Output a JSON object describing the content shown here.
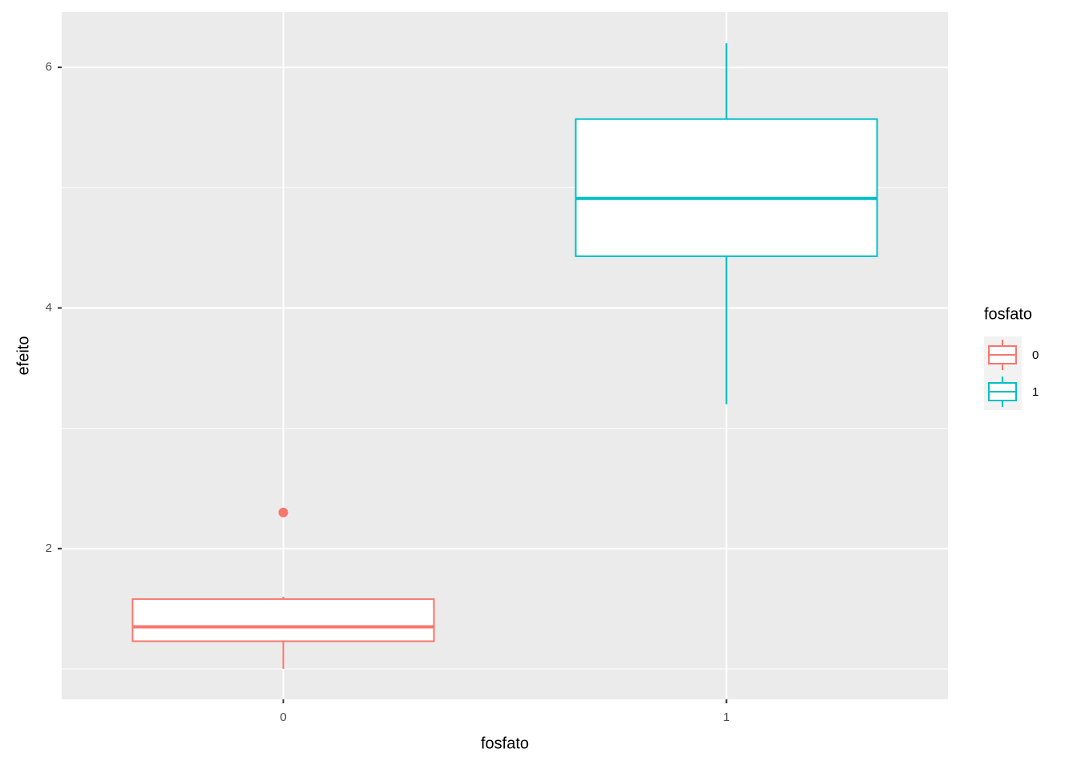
{
  "chart_data": {
    "type": "boxplot",
    "x_label": "fosfato",
    "y_label": "efeito",
    "categories": [
      "0",
      "1"
    ],
    "legend_title": "fosfato",
    "series": [
      {
        "name": "0",
        "color": "#F8766D",
        "whisker_low": 1.0,
        "q1": 1.23,
        "median": 1.35,
        "q3": 1.58,
        "whisker_high": 1.6,
        "outliers": [
          2.3
        ]
      },
      {
        "name": "1",
        "color": "#00BFC4",
        "whisker_low": 3.2,
        "q1": 4.43,
        "median": 4.91,
        "q3": 5.57,
        "whisker_high": 6.2,
        "outliers": []
      }
    ],
    "ylim": [
      0.747,
      6.46
    ],
    "yticks": [
      2,
      4,
      6
    ],
    "minor_yticks": [
      1,
      3,
      5
    ],
    "grid": true
  }
}
